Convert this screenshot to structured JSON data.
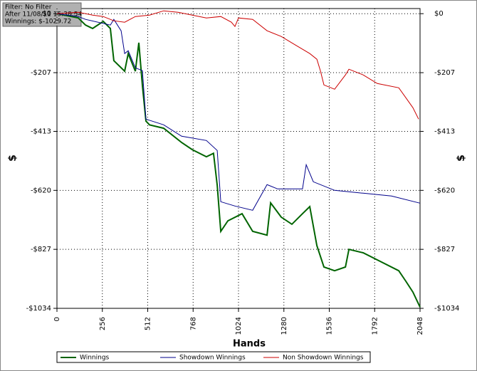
{
  "info": {
    "lines": [
      "Filter: No Filter",
      "After 11/08/11 15:38:54",
      "Winnings: $-1029.72"
    ]
  },
  "chart_data": {
    "type": "line",
    "x_label": "Hands",
    "y_label": "$",
    "y2_label": "$",
    "xlim": [
      0,
      2048
    ],
    "xticks": [
      0,
      256,
      512,
      768,
      1024,
      1280,
      1536,
      1792,
      2048
    ],
    "ylim": [
      -1034,
      18
    ],
    "yticks": [
      {
        "value": 0,
        "label": "$0"
      },
      {
        "value": -207,
        "label": "-$207"
      },
      {
        "value": -413,
        "label": "-$413"
      },
      {
        "value": -620,
        "label": "-$620"
      },
      {
        "value": -827,
        "label": "-$827"
      },
      {
        "value": -1034,
        "label": "-$1034"
      }
    ],
    "grid": true,
    "series": [
      {
        "name": "Winnings",
        "color": "#006400",
        "x": [
          0,
          120,
          161,
          201,
          261,
          301,
          321,
          382,
          402,
          442,
          462,
          482,
          502,
          522,
          602,
          703,
          763,
          843,
          883,
          904,
          924,
          964,
          1044,
          1104,
          1185,
          1205,
          1265,
          1325,
          1385,
          1426,
          1466,
          1506,
          1566,
          1627,
          1647,
          1727,
          1807,
          1928,
          1968,
          2008,
          2048
        ],
        "values": [
          0,
          -15,
          -40,
          -52,
          -27,
          -52,
          -165,
          -202,
          -140,
          -202,
          -102,
          -252,
          -377,
          -390,
          -402,
          -452,
          -477,
          -502,
          -490,
          -602,
          -764,
          -727,
          -702,
          -764,
          -777,
          -664,
          -714,
          -739,
          -702,
          -677,
          -814,
          -889,
          -902,
          -889,
          -827,
          -839,
          -864,
          -902,
          -939,
          -977,
          -1029.72
        ]
      },
      {
        "name": "Showdown Winnings",
        "color": "#00008b",
        "x": [
          0,
          120,
          161,
          301,
          321,
          362,
          382,
          402,
          442,
          482,
          502,
          602,
          703,
          843,
          904,
          924,
          1004,
          1104,
          1185,
          1245,
          1385,
          1406,
          1446,
          1566,
          1727,
          1887,
          2048
        ],
        "values": [
          0,
          -10,
          -20,
          -40,
          -20,
          -60,
          -140,
          -130,
          -190,
          -200,
          -370,
          -390,
          -430,
          -445,
          -480,
          -660,
          -675,
          -690,
          -600,
          -615,
          -615,
          -530,
          -590,
          -620,
          -630,
          -640,
          -665
        ]
      },
      {
        "name": "Non Showdown Winnings",
        "color": "#cc0000",
        "x": [
          0,
          120,
          201,
          261,
          321,
          382,
          442,
          522,
          602,
          683,
          763,
          843,
          924,
          984,
          1004,
          1024,
          1104,
          1185,
          1265,
          1345,
          1426,
          1466,
          1486,
          1506,
          1566,
          1627,
          1647,
          1727,
          1807,
          1928,
          1968,
          2008,
          2040
        ],
        "values": [
          0,
          5,
          -5,
          -10,
          -25,
          -30,
          -10,
          -5,
          10,
          5,
          -5,
          -15,
          -10,
          -30,
          -45,
          -15,
          -20,
          -60,
          -80,
          -110,
          -140,
          -160,
          -200,
          -250,
          -265,
          -215,
          -195,
          -215,
          -245,
          -260,
          -295,
          -330,
          -370
        ]
      }
    ]
  }
}
